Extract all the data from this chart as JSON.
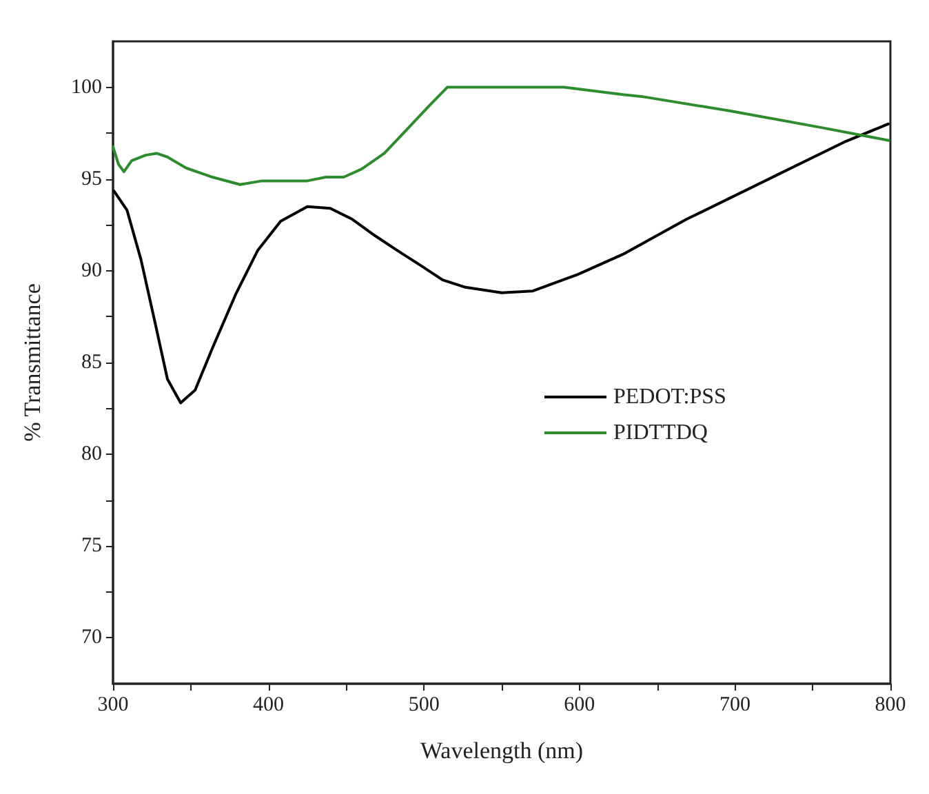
{
  "chart_data": {
    "type": "line",
    "xlabel": "Wavelength (nm)",
    "ylabel": "% Transmittance",
    "xlim": [
      300,
      800
    ],
    "ylim": [
      67.5,
      102.5
    ],
    "xticks": [
      300,
      {
        "value": 350,
        "label": null
      },
      400,
      {
        "value": 450,
        "label": null
      },
      500,
      {
        "value": 550,
        "label": null
      },
      600,
      {
        "value": 650,
        "label": null
      },
      700,
      {
        "value": 750,
        "label": null
      },
      800
    ],
    "yticks": [
      70,
      {
        "value": 72.5,
        "label": null
      },
      75,
      {
        "value": 77.5,
        "label": null
      },
      80,
      {
        "value": 82.5,
        "label": null
      },
      85,
      {
        "value": 87.5,
        "label": null
      },
      90,
      {
        "value": 92.5,
        "label": null
      },
      95,
      {
        "value": 97.5,
        "label": null
      },
      100
    ],
    "grid": false,
    "legend": "right",
    "marker": "none",
    "line_style": "solid",
    "series": [
      {
        "name": "PEDOT:PSS",
        "color": "#000000",
        "x": [
          300.6,
          309,
          318,
          326.7,
          335,
          343.5,
          352.8,
          364,
          378.8,
          393,
          407.8,
          425,
          439.7,
          454,
          468.7,
          483,
          497.7,
          512,
          526.7,
          550,
          570,
          599,
          628,
          668.7,
          726.6,
          770,
          798.6
        ],
        "values": [
          94.35,
          93.3,
          90.6,
          87.3,
          84.1,
          82.8,
          83.5,
          85.8,
          88.7,
          91.1,
          92.7,
          93.5,
          93.4,
          92.8,
          91.9,
          91.1,
          90.3,
          89.5,
          89.1,
          88.8,
          88.9,
          89.8,
          90.9,
          92.8,
          95.2,
          97.0,
          98.0
        ]
      },
      {
        "name": "PIDTTDQ",
        "color": "#2e8b2e",
        "x": [
          300,
          303.5,
          307,
          312,
          321,
          328,
          335,
          347,
          364,
          381.7,
          396,
          410.7,
          425,
          436.8,
          448.4,
          460,
          474.5,
          489,
          503.5,
          515,
          590,
          628,
          639.7,
          697.7,
          755.7,
          799
        ],
        "values": [
          96.75,
          95.8,
          95.4,
          96.0,
          96.3,
          96.4,
          96.2,
          95.6,
          95.1,
          94.7,
          94.9,
          94.9,
          94.9,
          95.1,
          95.1,
          95.55,
          96.4,
          97.7,
          99.0,
          100,
          100,
          99.6,
          99.5,
          98.7,
          97.8,
          97.1
        ]
      }
    ]
  }
}
